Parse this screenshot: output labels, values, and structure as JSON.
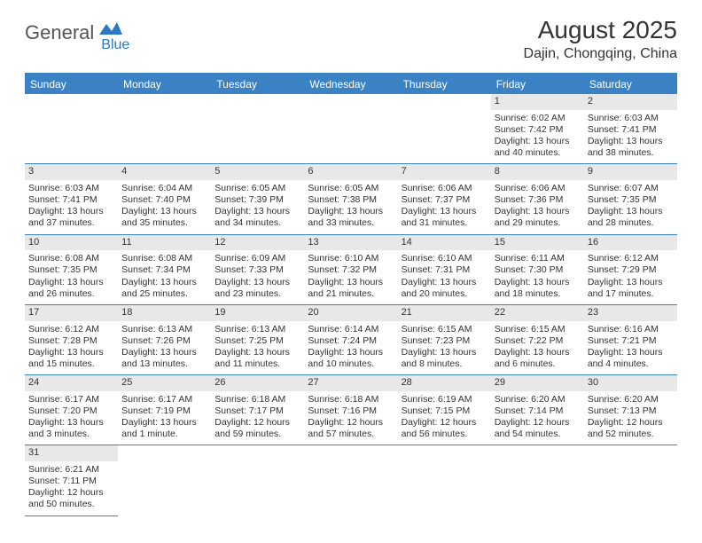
{
  "logo": {
    "general": "General",
    "blue": "Blue"
  },
  "title": "August 2025",
  "location": "Dajin, Chongqing, China",
  "colors": {
    "header_bg": "#3b82c4",
    "header_fg": "#ffffff",
    "daynum_bg": "#e8e8e8",
    "border": "#3b82c4",
    "text": "#333333"
  },
  "daynames": [
    "Sunday",
    "Monday",
    "Tuesday",
    "Wednesday",
    "Thursday",
    "Friday",
    "Saturday"
  ],
  "leading_blanks": 5,
  "days": [
    {
      "n": 1,
      "sr": "6:02 AM",
      "ss": "7:42 PM",
      "dl": "13 hours and 40 minutes."
    },
    {
      "n": 2,
      "sr": "6:03 AM",
      "ss": "7:41 PM",
      "dl": "13 hours and 38 minutes."
    },
    {
      "n": 3,
      "sr": "6:03 AM",
      "ss": "7:41 PM",
      "dl": "13 hours and 37 minutes."
    },
    {
      "n": 4,
      "sr": "6:04 AM",
      "ss": "7:40 PM",
      "dl": "13 hours and 35 minutes."
    },
    {
      "n": 5,
      "sr": "6:05 AM",
      "ss": "7:39 PM",
      "dl": "13 hours and 34 minutes."
    },
    {
      "n": 6,
      "sr": "6:05 AM",
      "ss": "7:38 PM",
      "dl": "13 hours and 33 minutes."
    },
    {
      "n": 7,
      "sr": "6:06 AM",
      "ss": "7:37 PM",
      "dl": "13 hours and 31 minutes."
    },
    {
      "n": 8,
      "sr": "6:06 AM",
      "ss": "7:36 PM",
      "dl": "13 hours and 29 minutes."
    },
    {
      "n": 9,
      "sr": "6:07 AM",
      "ss": "7:35 PM",
      "dl": "13 hours and 28 minutes."
    },
    {
      "n": 10,
      "sr": "6:08 AM",
      "ss": "7:35 PM",
      "dl": "13 hours and 26 minutes."
    },
    {
      "n": 11,
      "sr": "6:08 AM",
      "ss": "7:34 PM",
      "dl": "13 hours and 25 minutes."
    },
    {
      "n": 12,
      "sr": "6:09 AM",
      "ss": "7:33 PM",
      "dl": "13 hours and 23 minutes."
    },
    {
      "n": 13,
      "sr": "6:10 AM",
      "ss": "7:32 PM",
      "dl": "13 hours and 21 minutes."
    },
    {
      "n": 14,
      "sr": "6:10 AM",
      "ss": "7:31 PM",
      "dl": "13 hours and 20 minutes."
    },
    {
      "n": 15,
      "sr": "6:11 AM",
      "ss": "7:30 PM",
      "dl": "13 hours and 18 minutes."
    },
    {
      "n": 16,
      "sr": "6:12 AM",
      "ss": "7:29 PM",
      "dl": "13 hours and 17 minutes."
    },
    {
      "n": 17,
      "sr": "6:12 AM",
      "ss": "7:28 PM",
      "dl": "13 hours and 15 minutes."
    },
    {
      "n": 18,
      "sr": "6:13 AM",
      "ss": "7:26 PM",
      "dl": "13 hours and 13 minutes."
    },
    {
      "n": 19,
      "sr": "6:13 AM",
      "ss": "7:25 PM",
      "dl": "13 hours and 11 minutes."
    },
    {
      "n": 20,
      "sr": "6:14 AM",
      "ss": "7:24 PM",
      "dl": "13 hours and 10 minutes."
    },
    {
      "n": 21,
      "sr": "6:15 AM",
      "ss": "7:23 PM",
      "dl": "13 hours and 8 minutes."
    },
    {
      "n": 22,
      "sr": "6:15 AM",
      "ss": "7:22 PM",
      "dl": "13 hours and 6 minutes."
    },
    {
      "n": 23,
      "sr": "6:16 AM",
      "ss": "7:21 PM",
      "dl": "13 hours and 4 minutes."
    },
    {
      "n": 24,
      "sr": "6:17 AM",
      "ss": "7:20 PM",
      "dl": "13 hours and 3 minutes."
    },
    {
      "n": 25,
      "sr": "6:17 AM",
      "ss": "7:19 PM",
      "dl": "13 hours and 1 minute."
    },
    {
      "n": 26,
      "sr": "6:18 AM",
      "ss": "7:17 PM",
      "dl": "12 hours and 59 minutes."
    },
    {
      "n": 27,
      "sr": "6:18 AM",
      "ss": "7:16 PM",
      "dl": "12 hours and 57 minutes."
    },
    {
      "n": 28,
      "sr": "6:19 AM",
      "ss": "7:15 PM",
      "dl": "12 hours and 56 minutes."
    },
    {
      "n": 29,
      "sr": "6:20 AM",
      "ss": "7:14 PM",
      "dl": "12 hours and 54 minutes."
    },
    {
      "n": 30,
      "sr": "6:20 AM",
      "ss": "7:13 PM",
      "dl": "12 hours and 52 minutes."
    },
    {
      "n": 31,
      "sr": "6:21 AM",
      "ss": "7:11 PM",
      "dl": "12 hours and 50 minutes."
    }
  ],
  "labels": {
    "sunrise": "Sunrise:",
    "sunset": "Sunset:",
    "daylight": "Daylight:"
  }
}
